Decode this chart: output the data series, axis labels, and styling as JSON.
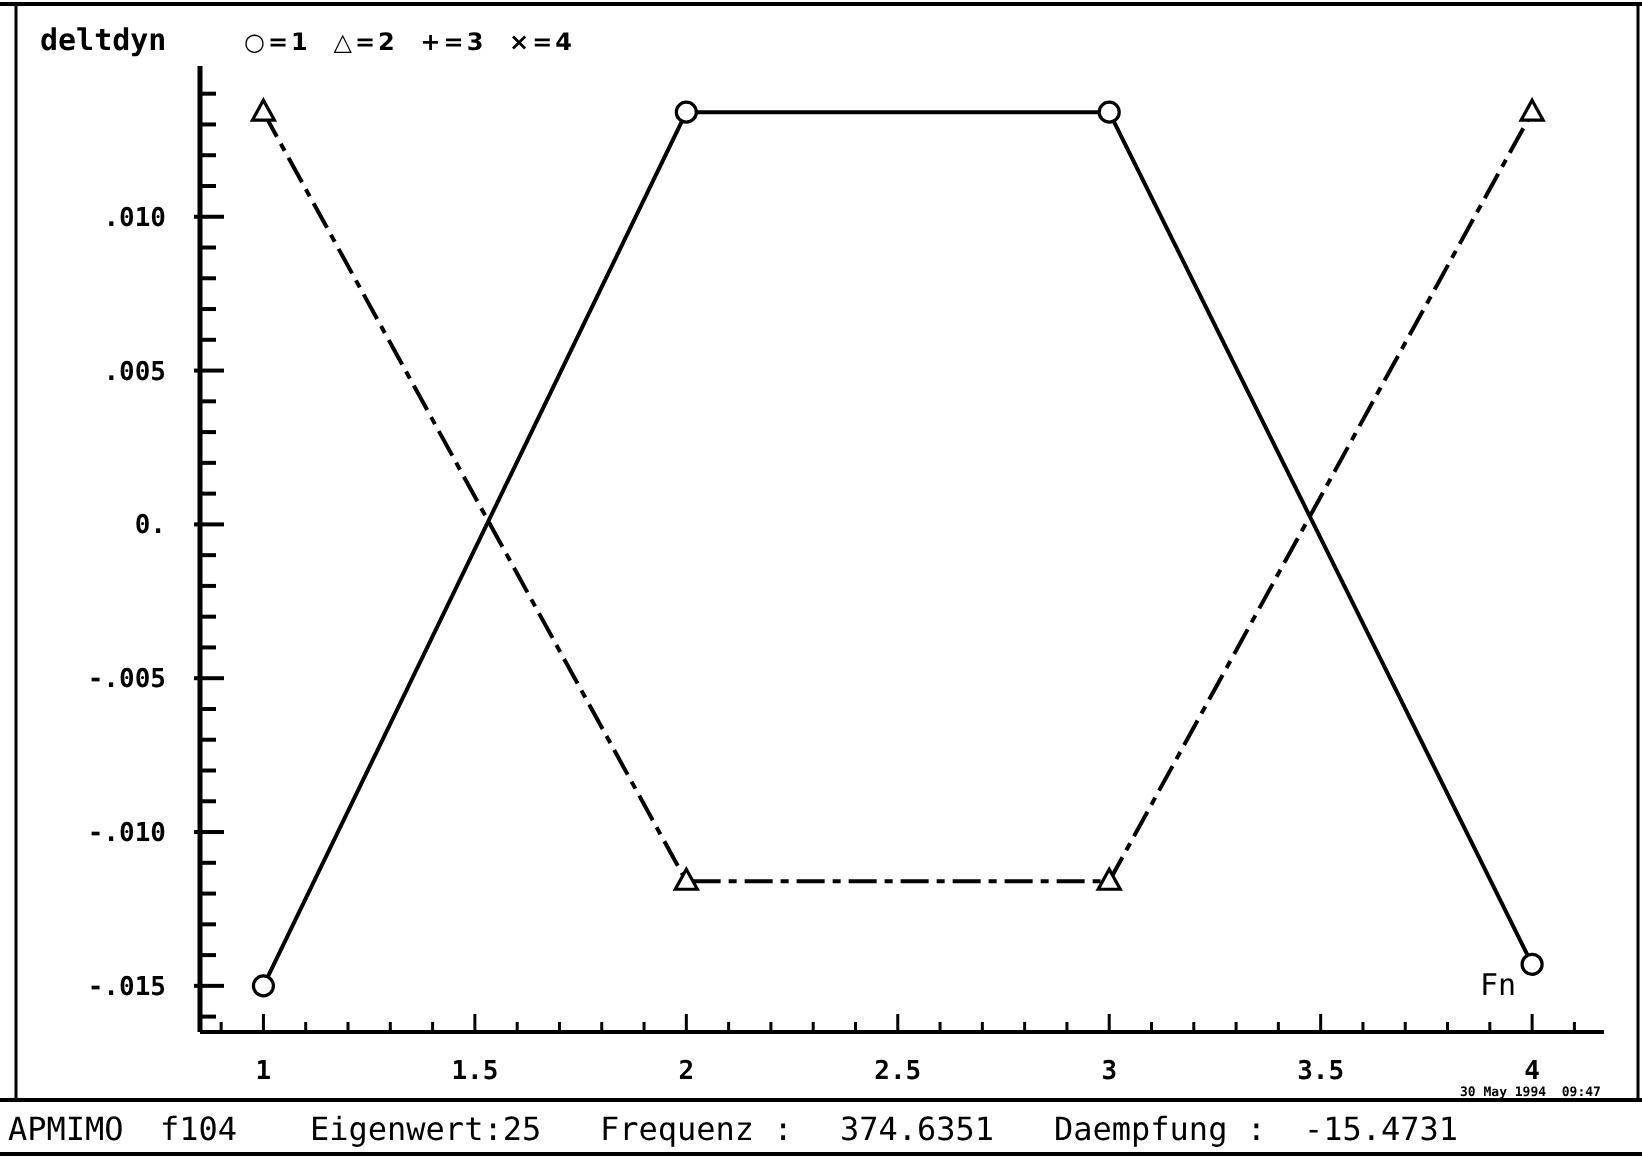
{
  "chart_data": {
    "type": "line",
    "ylabel": "deltdyn",
    "xlabel": "Fn",
    "x": [
      1,
      2,
      3,
      4
    ],
    "series": [
      {
        "color": "#000000",
        "values": [
          -0.015,
          0.0134,
          0.0134,
          -0.0143
        ],
        "marker": "circle",
        "line_style": "solid"
      },
      {
        "color": "#000000",
        "values": [
          0.0134,
          -0.0116,
          -0.0116,
          0.0134
        ],
        "marker": "triangle",
        "line_style": "dashed"
      }
    ],
    "xlim": [
      0.85,
      4.17
    ],
    "ylim": [
      -0.0165,
      0.0149
    ],
    "xticks": [
      {
        "value": 0.9,
        "label": null
      },
      1,
      {
        "value": 1.1,
        "label": null
      },
      {
        "value": 1.2,
        "label": null
      },
      {
        "value": 1.3,
        "label": null
      },
      {
        "value": 1.4,
        "label": null
      },
      1.5,
      {
        "value": 1.6,
        "label": null
      },
      {
        "value": 1.7,
        "label": null
      },
      {
        "value": 1.8,
        "label": null
      },
      {
        "value": 1.9,
        "label": null
      },
      2,
      {
        "value": 2.1,
        "label": null
      },
      {
        "value": 2.2,
        "label": null
      },
      {
        "value": 2.3,
        "label": null
      },
      {
        "value": 2.4,
        "label": null
      },
      2.5,
      {
        "value": 2.6,
        "label": null
      },
      {
        "value": 2.7,
        "label": null
      },
      {
        "value": 2.8,
        "label": null
      },
      {
        "value": 2.9,
        "label": null
      },
      3,
      {
        "value": 3.1,
        "label": null
      },
      {
        "value": 3.2,
        "label": null
      },
      {
        "value": 3.3,
        "label": null
      },
      {
        "value": 3.4,
        "label": null
      },
      3.5,
      {
        "value": 3.6,
        "label": null
      },
      {
        "value": 3.7,
        "label": null
      },
      {
        "value": 3.8,
        "label": null
      },
      {
        "value": 3.9,
        "label": null
      },
      4,
      {
        "value": 4.1,
        "label": null
      }
    ],
    "yticks": [
      {
        "value": -0.016,
        "label": null
      },
      {
        "value": -0.015,
        "label": "-.015"
      },
      {
        "value": -0.014,
        "label": null
      },
      {
        "value": -0.013,
        "label": null
      },
      {
        "value": -0.012,
        "label": null
      },
      {
        "value": -0.011,
        "label": null
      },
      {
        "value": -0.01,
        "label": "-.010"
      },
      {
        "value": -0.009,
        "label": null
      },
      {
        "value": -0.008,
        "label": null
      },
      {
        "value": -0.007,
        "label": null
      },
      {
        "value": -0.006,
        "label": null
      },
      {
        "value": -0.005,
        "label": "-.005"
      },
      {
        "value": -0.004,
        "label": null
      },
      {
        "value": -0.003,
        "label": null
      },
      {
        "value": -0.002,
        "label": null
      },
      {
        "value": -0.001,
        "label": null
      },
      {
        "value": 0,
        "label": "0."
      },
      {
        "value": 0.001,
        "label": null
      },
      {
        "value": 0.002,
        "label": null
      },
      {
        "value": 0.003,
        "label": null
      },
      {
        "value": 0.004,
        "label": null
      },
      {
        "value": 0.005,
        "label": ".005"
      },
      {
        "value": 0.006,
        "label": null
      },
      {
        "value": 0.007,
        "label": null
      },
      {
        "value": 0.008,
        "label": null
      },
      {
        "value": 0.009,
        "label": null
      },
      {
        "value": 0.01,
        "label": ".010"
      },
      {
        "value": 0.011,
        "label": null
      },
      {
        "value": 0.012,
        "label": null
      },
      {
        "value": 0.013,
        "label": null
      },
      {
        "value": 0.014,
        "label": null
      }
    ],
    "annotations": [
      "○=1  △=2  +=3  ×=4",
      "30 May 1994  09:47",
      "APMIMO",
      "f104",
      "Eigenwert:25",
      "Frequenz :",
      "374.6351",
      "Daempfung :",
      "-15.4731"
    ]
  }
}
